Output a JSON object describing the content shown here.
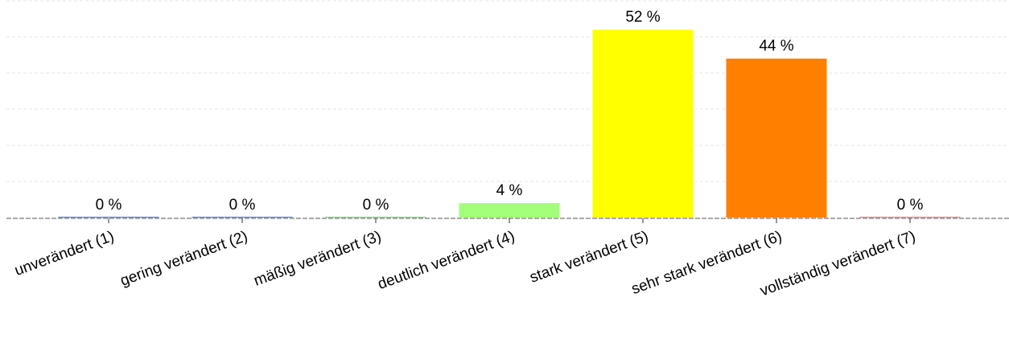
{
  "chart_data": {
    "type": "bar",
    "categories": [
      "unverändert (1)",
      "gering verändert (2)",
      "mäßig verändert (3)",
      "deutlich verändert (4)",
      "stark verändert (5)",
      "sehr stark verändert (6)",
      "vollständig verändert (7)"
    ],
    "values": [
      0,
      0,
      0,
      4,
      52,
      44,
      0
    ],
    "labels": [
      "0 %",
      "0 %",
      "0 %",
      "4 %",
      "52 %",
      "44 %",
      "0 %"
    ],
    "colors": [
      "#4f6fa8",
      "#4f6fa8",
      "#7fbf7f",
      "#a3ff7a",
      "#ffff00",
      "#ff8000",
      "#c08080"
    ],
    "ylim": [
      0,
      52
    ],
    "grid": true,
    "title": "",
    "xlabel": "",
    "ylabel": ""
  }
}
